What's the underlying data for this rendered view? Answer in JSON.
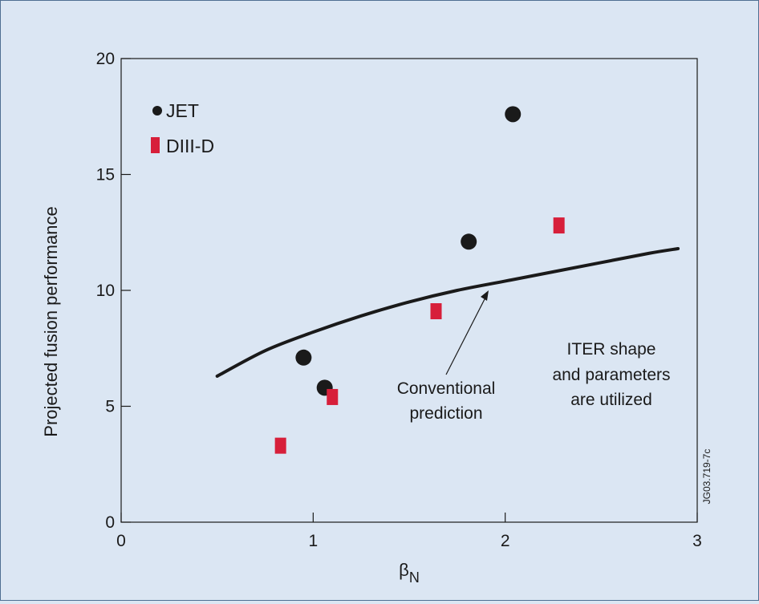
{
  "chart_data": {
    "type": "scatter",
    "xlabel": "β",
    "xlabel_sub": "N",
    "ylabel": "Projected fusion performance",
    "xlim": [
      0,
      3
    ],
    "ylim": [
      0,
      20
    ],
    "xticks": [
      "0",
      "1",
      "2",
      "3"
    ],
    "yticks": [
      "0",
      "5",
      "10",
      "15",
      "20"
    ],
    "grid": false,
    "legend_position": "top-left",
    "series": [
      {
        "name": "JET",
        "marker": "circle",
        "color": "#1a1a1a",
        "points": [
          [
            0.95,
            7.1
          ],
          [
            1.06,
            5.8
          ],
          [
            1.81,
            12.1
          ],
          [
            2.04,
            17.6
          ]
        ]
      },
      {
        "name": "DIII-D",
        "marker": "square",
        "color": "#d71f3a",
        "points": [
          [
            0.83,
            3.3
          ],
          [
            1.1,
            5.4
          ],
          [
            1.64,
            9.1
          ],
          [
            2.28,
            12.8
          ]
        ]
      }
    ],
    "curve": {
      "name": "Conventional prediction",
      "color": "#1a1a1a",
      "points": [
        [
          0.5,
          6.3
        ],
        [
          0.75,
          7.4
        ],
        [
          1.0,
          8.2
        ],
        [
          1.25,
          8.9
        ],
        [
          1.5,
          9.5
        ],
        [
          1.75,
          10.0
        ],
        [
          2.0,
          10.4
        ],
        [
          2.25,
          10.8
        ],
        [
          2.5,
          11.2
        ],
        [
          2.75,
          11.6
        ],
        [
          2.9,
          11.8
        ]
      ]
    },
    "annotations": {
      "prediction_lines": [
        "Conventional",
        "prediction"
      ],
      "iter_lines": [
        "ITER shape",
        "and parameters",
        "are utilized"
      ]
    },
    "figure_code": "JG03.719-7c"
  }
}
